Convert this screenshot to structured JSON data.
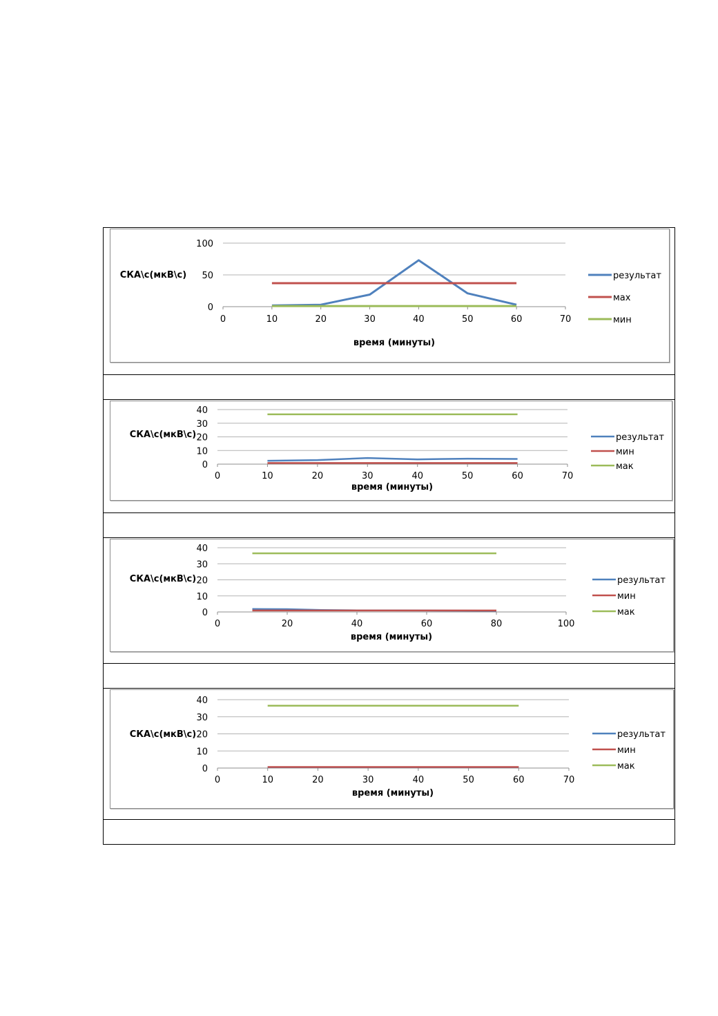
{
  "chart_data": [
    {
      "type": "line",
      "title": "",
      "xlabel": "время (минуты)",
      "ylabel": "СКА\\с(мкВ\\с)",
      "xlim": [
        0,
        70
      ],
      "ylim": [
        0,
        100
      ],
      "x_ticks": [
        0,
        10,
        20,
        30,
        40,
        50,
        60,
        70
      ],
      "y_ticks": [
        0,
        50,
        100
      ],
      "grid": true,
      "legend_position": "right",
      "series": [
        {
          "name": "результат",
          "color": "#4f81bd",
          "x": [
            10,
            20,
            30,
            40,
            50,
            60
          ],
          "values": [
            2,
            3,
            19,
            73,
            21,
            3
          ]
        },
        {
          "name": "мах",
          "color": "#c0504d",
          "x": [
            10,
            60
          ],
          "values": [
            37,
            37
          ]
        },
        {
          "name": "мин",
          "color": "#9bbb59",
          "x": [
            10,
            60
          ],
          "values": [
            1,
            1
          ]
        }
      ]
    },
    {
      "type": "line",
      "title": "",
      "xlabel": "время (минуты)",
      "ylabel": "СКА\\с(мкВ\\с)",
      "xlim": [
        0,
        70
      ],
      "ylim": [
        0,
        40
      ],
      "x_ticks": [
        0,
        10,
        20,
        30,
        40,
        50,
        60,
        70
      ],
      "y_ticks": [
        0,
        10,
        20,
        30,
        40
      ],
      "grid": true,
      "legend_position": "right",
      "series": [
        {
          "name": "результат",
          "color": "#4f81bd",
          "x": [
            10,
            20,
            30,
            40,
            50,
            60
          ],
          "values": [
            2.5,
            3,
            4.5,
            3.5,
            4,
            3.8
          ]
        },
        {
          "name": "мин",
          "color": "#c0504d",
          "x": [
            10,
            60
          ],
          "values": [
            0.8,
            0.8
          ]
        },
        {
          "name": "мак",
          "color": "#9bbb59",
          "x": [
            10,
            60
          ],
          "values": [
            36.5,
            36.5
          ]
        }
      ]
    },
    {
      "type": "line",
      "title": "",
      "xlabel": "время (минуты)",
      "ylabel": "СКА\\с(мкВ\\с)",
      "xlim": [
        0,
        100
      ],
      "ylim": [
        0,
        40
      ],
      "x_ticks": [
        0,
        20,
        40,
        60,
        80,
        100
      ],
      "y_ticks": [
        0,
        10,
        20,
        30,
        40
      ],
      "grid": true,
      "legend_position": "right",
      "series": [
        {
          "name": "результат",
          "color": "#4f81bd",
          "x": [
            10,
            20,
            30,
            40,
            50,
            60,
            70,
            80
          ],
          "values": [
            1.8,
            1.7,
            1.2,
            1,
            1,
            0.9,
            0.8,
            0.7
          ]
        },
        {
          "name": "мин",
          "color": "#c0504d",
          "x": [
            10,
            80
          ],
          "values": [
            0.9,
            0.9
          ]
        },
        {
          "name": "мак",
          "color": "#9bbb59",
          "x": [
            10,
            80
          ],
          "values": [
            36.5,
            36.5
          ]
        }
      ]
    },
    {
      "type": "line",
      "title": "",
      "xlabel": "время (минуты)",
      "ylabel": "СКА\\с(мкВ\\с)",
      "xlim": [
        0,
        70
      ],
      "ylim": [
        0,
        40
      ],
      "x_ticks": [
        0,
        10,
        20,
        30,
        40,
        50,
        60,
        70
      ],
      "y_ticks": [
        0,
        10,
        20,
        30,
        40
      ],
      "grid": true,
      "legend_position": "right",
      "series": [
        {
          "name": "результат",
          "color": "#4f81bd",
          "x": [
            10,
            20,
            30,
            40,
            50,
            60
          ],
          "values": [
            0.5,
            0.5,
            0.5,
            0.5,
            0.5,
            0.5
          ]
        },
        {
          "name": "мин",
          "color": "#c0504d",
          "x": [
            10,
            60
          ],
          "values": [
            0.6,
            0.6
          ]
        },
        {
          "name": "мак",
          "color": "#9bbb59",
          "x": [
            10,
            60
          ],
          "values": [
            36.5,
            36.5
          ]
        }
      ]
    }
  ]
}
